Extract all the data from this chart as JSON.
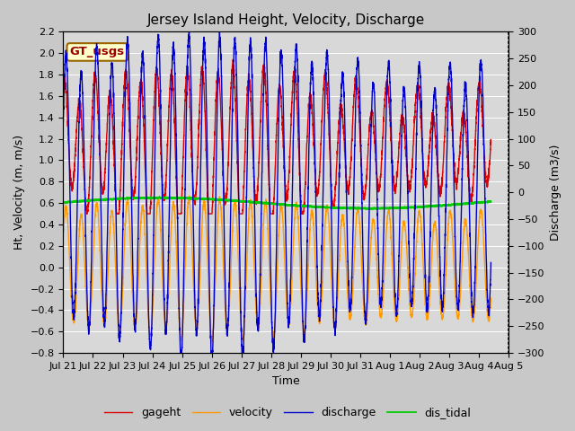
{
  "title": "Jersey Island Height, Velocity, Discharge",
  "xlabel": "Time",
  "ylabel_left": "Ht, Velocity (m, m/s)",
  "ylabel_right": "Discharge (m3/s)",
  "ylim_left": [
    -0.8,
    2.2
  ],
  "ylim_right": [
    -300,
    300
  ],
  "xlim_hours": 345.6,
  "xtick_labels": [
    "Jul 21",
    "Jul 22",
    "Jul 23",
    "Jul 24",
    "Jul 25",
    "Jul 26",
    "Jul 27",
    "Jul 28",
    "Jul 29",
    "Jul 30",
    "Jul 31",
    "Aug 1",
    "Aug 2",
    "Aug 3",
    "Aug 4",
    "Aug 5"
  ],
  "legend_labels": [
    "gageht",
    "velocity",
    "discharge",
    "dis_tidal"
  ],
  "gt_usgs_label": "GT_usgs",
  "fig_bg_color": "#c8c8c8",
  "plot_bg_color": "#d8d8d8",
  "title_fontsize": 11,
  "axis_label_fontsize": 9,
  "tick_fontsize": 8,
  "legend_fontsize": 9,
  "line_width": 1.0,
  "gageht_color": "#dd0000",
  "velocity_color": "#ff9900",
  "discharge_color": "#0000cc",
  "dis_tidal_color": "#00cc00",
  "grid_color": "#ffffff",
  "grid_lw": 0.7
}
